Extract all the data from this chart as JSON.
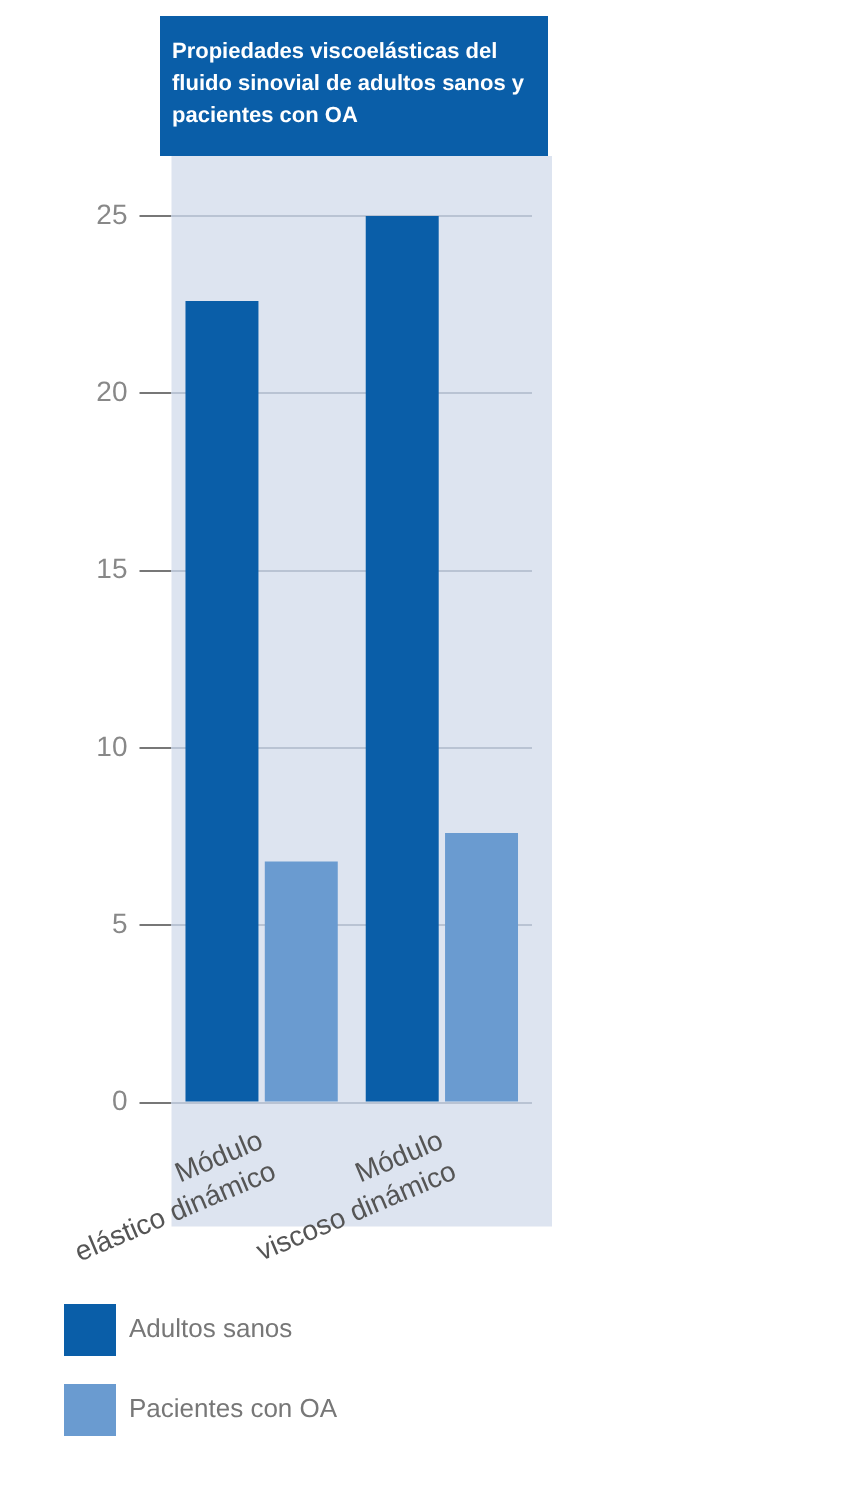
{
  "chart_data": {
    "type": "bar",
    "title": "Propiedades viscoelásticas del fluido sinovial de adultos sanos y pacientes con OA",
    "categories": [
      "Módulo\nelástico dinámico",
      "Módulo\nviscoso dinámico"
    ],
    "series": [
      {
        "name": "Adultos sanos",
        "color": "#0a5ea8",
        "values": [
          22.6,
          25
        ]
      },
      {
        "name": "Pacientes con OA",
        "color": "#6a9bd0",
        "values": [
          6.8,
          7.6
        ]
      }
    ],
    "ylim": [
      0,
      25
    ],
    "yticks": [
      0,
      5,
      10,
      15,
      20,
      25
    ],
    "grid": "y",
    "legend": "bottom"
  }
}
